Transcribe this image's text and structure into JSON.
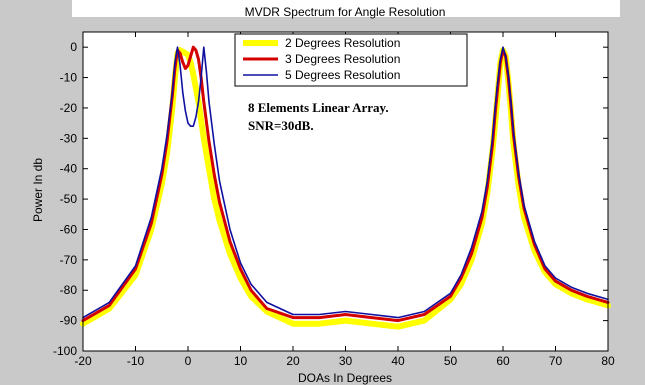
{
  "chart_data": {
    "type": "line",
    "title": "MVDR Spectrum for Angle Resolution",
    "xlabel": "DOAs In Degrees",
    "ylabel": "Power In db",
    "xlim": [
      -20,
      80
    ],
    "ylim": [
      -100,
      5
    ],
    "xticks": [
      -20,
      -10,
      0,
      10,
      20,
      30,
      40,
      50,
      60,
      70,
      80
    ],
    "yticks": [
      0,
      -10,
      -20,
      -30,
      -40,
      -50,
      -60,
      -70,
      -80,
      -90,
      -100
    ],
    "grid": false,
    "legend_position": "top-center",
    "annotations": [
      "8 Elements Linear Array.",
      "SNR=30dB."
    ],
    "series": [
      {
        "name": "2 Degrees Resolution",
        "color": "#ffff00",
        "width": "thick",
        "x": [
          -20,
          -15,
          -10,
          -7,
          -5,
          -4,
          -3,
          -2.5,
          -2,
          -1.5,
          -1,
          -0.5,
          0,
          0.5,
          1,
          2,
          3,
          4,
          5,
          6,
          8,
          10,
          12,
          15,
          20,
          25,
          30,
          35,
          40,
          45,
          50,
          52,
          54,
          56,
          57,
          58,
          58.5,
          59,
          59.5,
          60,
          60.5,
          61,
          61.5,
          62,
          63,
          64,
          66,
          68,
          70,
          73,
          76,
          80
        ],
        "y": [
          -91,
          -86,
          -75,
          -60,
          -45,
          -35,
          -20,
          -10,
          -2,
          -1,
          -1.5,
          -2,
          -2.5,
          -5,
          -9,
          -18,
          -30,
          -40,
          -50,
          -57,
          -68,
          -76,
          -82,
          -87,
          -91,
          -91,
          -90,
          -91,
          -92,
          -90,
          -83,
          -78,
          -70,
          -58,
          -48,
          -34,
          -25,
          -15,
          -5,
          -1,
          -3,
          -11,
          -21,
          -32,
          -46,
          -56,
          -67,
          -74,
          -78,
          -81,
          -83,
          -85
        ]
      },
      {
        "name": "3 Degrees Resolution",
        "color": "#d40000",
        "width": "medium",
        "x": [
          -20,
          -15,
          -10,
          -7,
          -5,
          -4,
          -3,
          -2.5,
          -2,
          -1.5,
          -1,
          -0.5,
          0,
          0.5,
          1,
          1.5,
          2,
          2.5,
          3,
          4,
          5,
          6,
          8,
          10,
          12,
          15,
          20,
          25,
          30,
          35,
          40,
          45,
          50,
          52,
          54,
          56,
          57,
          58,
          58.5,
          59,
          59.5,
          60,
          60.5,
          61,
          61.5,
          62,
          63,
          64,
          66,
          68,
          70,
          73,
          76,
          80
        ],
        "y": [
          -90,
          -85,
          -73,
          -58,
          -42,
          -31,
          -16,
          -7,
          -1,
          -2,
          -5,
          -7,
          -6,
          -3,
          0,
          -1,
          -4,
          -10,
          -18,
          -31,
          -42,
          -51,
          -64,
          -73,
          -80,
          -86,
          -89,
          -89,
          -88,
          -89,
          -90,
          -88,
          -82,
          -76,
          -68,
          -56,
          -46,
          -32,
          -22,
          -13,
          -5,
          -1,
          -3,
          -10,
          -19,
          -29,
          -43,
          -53,
          -65,
          -73,
          -77,
          -80,
          -82,
          -84
        ]
      },
      {
        "name": "5 Degrees Resolution",
        "color": "#1010a0",
        "width": "thin",
        "x": [
          -20,
          -15,
          -10,
          -7,
          -5,
          -4,
          -3,
          -2.5,
          -2,
          -1.5,
          -1,
          -0.5,
          0,
          0.5,
          1,
          1.5,
          2,
          2.5,
          3,
          3.5,
          4,
          5,
          6,
          8,
          10,
          12,
          15,
          20,
          25,
          30,
          35,
          40,
          45,
          50,
          52,
          54,
          56,
          57,
          58,
          58.5,
          59,
          59.5,
          60,
          60.5,
          61,
          61.5,
          62,
          63,
          64,
          66,
          68,
          70,
          73,
          76,
          80
        ],
        "y": [
          -89,
          -84,
          -72,
          -56,
          -40,
          -29,
          -15,
          -5,
          0,
          -6,
          -15,
          -21,
          -25,
          -26,
          -26,
          -23,
          -18,
          -10,
          0,
          -8,
          -18,
          -32,
          -44,
          -60,
          -71,
          -78,
          -84,
          -88,
          -88,
          -87,
          -88,
          -89,
          -87,
          -81,
          -75,
          -66,
          -54,
          -44,
          -30,
          -20,
          -11,
          -4,
          0,
          -3,
          -9,
          -18,
          -28,
          -42,
          -52,
          -64,
          -72,
          -76,
          -79,
          -81,
          -83
        ]
      }
    ]
  }
}
